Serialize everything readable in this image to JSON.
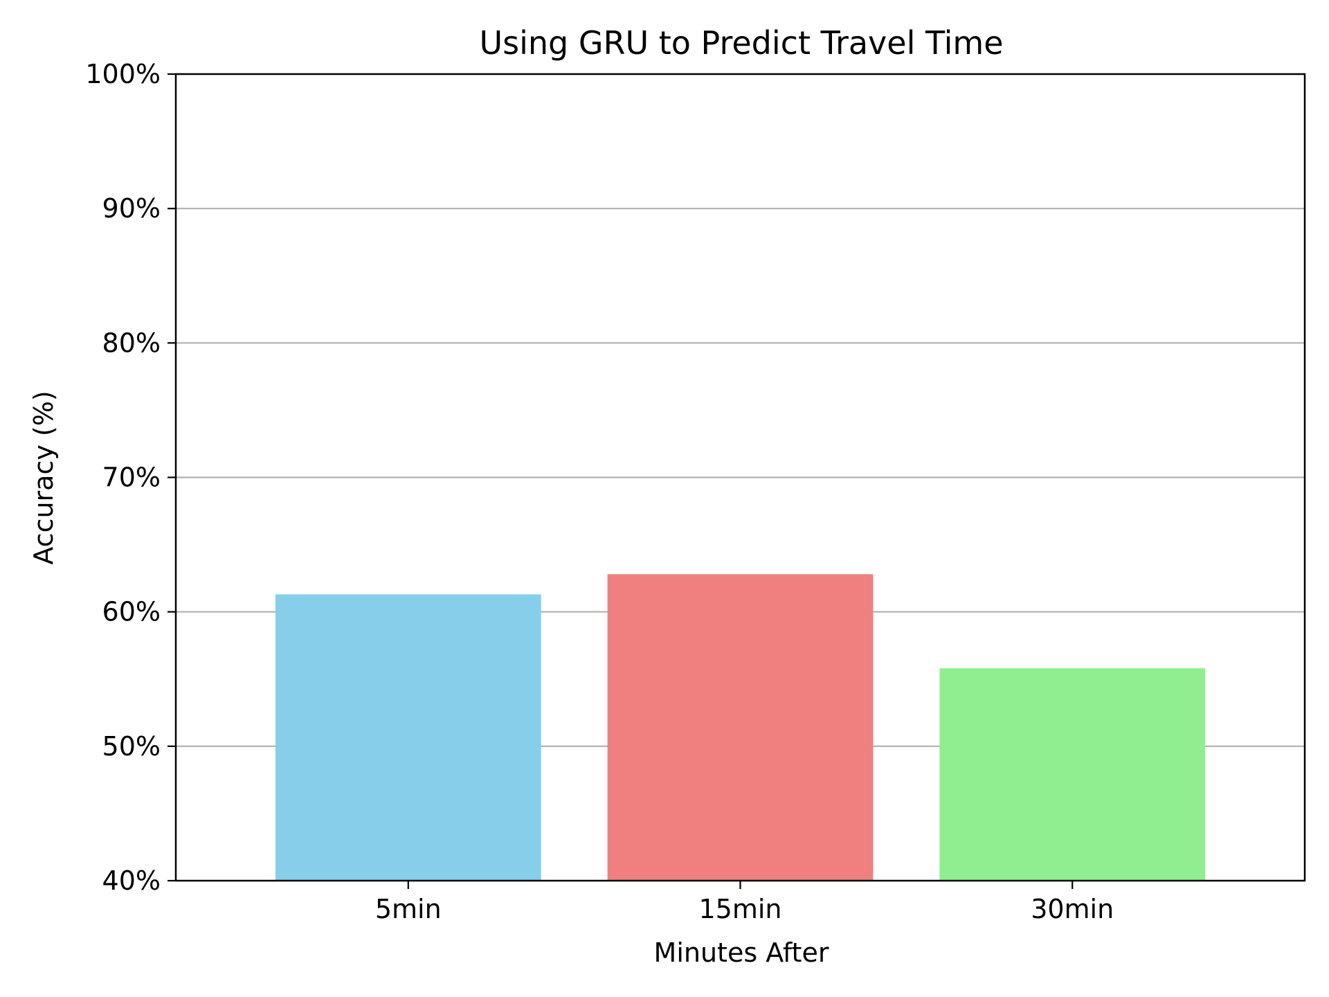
{
  "chart_data": {
    "type": "bar",
    "title": "Using GRU to Predict Travel Time",
    "xlabel": "Minutes After",
    "ylabel": "Accuracy (%)",
    "categories": [
      "5min",
      "15min",
      "30min"
    ],
    "values": [
      61.3,
      62.8,
      55.8
    ],
    "colors": [
      "#87ceeb",
      "#f08080",
      "#90ee90"
    ],
    "ylim": [
      40,
      100
    ],
    "yticks": [
      40,
      50,
      60,
      70,
      80,
      90,
      100
    ],
    "ytick_labels": [
      "40%",
      "50%",
      "60%",
      "70%",
      "80%",
      "90%",
      "100%"
    ],
    "grid": "horizontal",
    "grid_color": "#b0b0b0"
  }
}
